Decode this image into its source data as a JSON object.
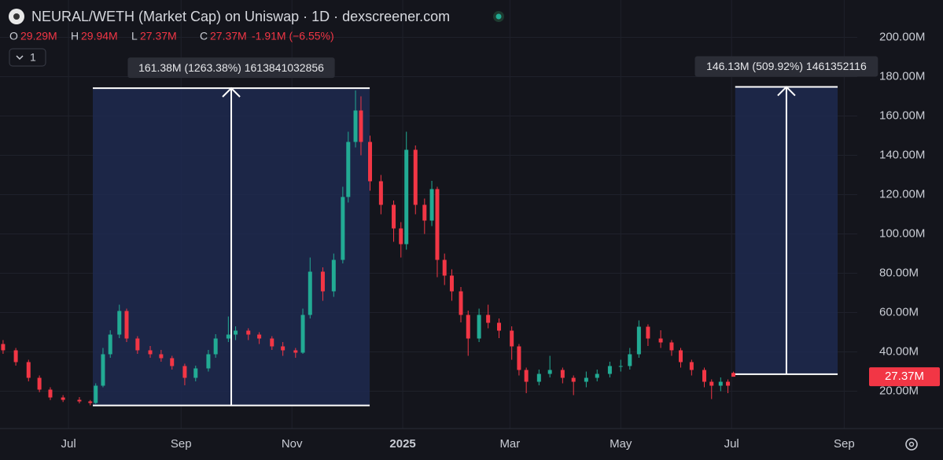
{
  "chart_data": {
    "type": "candlestick",
    "title": "NEURAL/WETH (Market Cap) on Uniswap · 1D · dexscreener.com",
    "ohlc_legend": [
      {
        "key": "O",
        "value": "29.29M"
      },
      {
        "key": "H",
        "value": "29.94M"
      },
      {
        "key": "L",
        "value": "27.37M"
      },
      {
        "key": "C",
        "value": "27.37M"
      }
    ],
    "change": "-1.91M (−6.55%)",
    "interval": "1",
    "colors": {
      "up": "#22ab94",
      "down": "#f23645"
    },
    "x": [
      -36,
      -29,
      -22,
      -16,
      -10,
      -3,
      6,
      12,
      15,
      19,
      23,
      28,
      32,
      38,
      45,
      51,
      57,
      64,
      70,
      77,
      81,
      88,
      92,
      99,
      105,
      112,
      118,
      125,
      129,
      133,
      140,
      146,
      151,
      154,
      158,
      161,
      166,
      172,
      179,
      183,
      186,
      191,
      196,
      200,
      203,
      207,
      211,
      216,
      220,
      226,
      231,
      237,
      244,
      248,
      252,
      259,
      265,
      272,
      278,
      285,
      291,
      298,
      304,
      309,
      314,
      319,
      326,
      332,
      337,
      343,
      350,
      354,
      359,
      363,
      366
    ],
    "open": [
      44,
      40.8,
      34.8,
      26.8,
      20.8,
      16.8,
      15.6,
      14.8,
      14,
      22.8,
      38.8,
      48.8,
      60.8,
      46.8,
      40.8,
      38.8,
      36.8,
      32.8,
      26.8,
      31.6,
      38.8,
      46.8,
      48.8,
      50.8,
      48.8,
      46.8,
      42.8,
      40.8,
      39.6,
      58.8,
      80.8,
      70.8,
      86.8,
      118.8,
      146.8,
      162.8,
      146.8,
      126.8,
      114.8,
      102.8,
      94.8,
      142.8,
      114.8,
      106.8,
      122.8,
      86.8,
      78.8,
      70.8,
      58.8,
      46.8,
      58.8,
      54.8,
      50.8,
      42.8,
      30.8,
      24.8,
      28.8,
      30.8,
      26.8,
      24.8,
      26.8,
      28.8,
      32.8,
      32.8,
      38.8,
      52.8,
      46.8,
      44.8,
      40.8,
      34.8,
      30.8,
      24.8,
      22.8,
      24.8,
      29.29
    ],
    "high": [
      46,
      42,
      36,
      28,
      22,
      18,
      17,
      15.5,
      24,
      42,
      51,
      64,
      62,
      48,
      43,
      41,
      38,
      34,
      33,
      41,
      49,
      58,
      53,
      52,
      50,
      48,
      45,
      42,
      62,
      88,
      83,
      90,
      124,
      152,
      173,
      170,
      150,
      130,
      117,
      106,
      152,
      145,
      118,
      127,
      124,
      90,
      82,
      73,
      61,
      62,
      64,
      57,
      53,
      44,
      32,
      31,
      38,
      32,
      28,
      30,
      31,
      35,
      36,
      42,
      56,
      54,
      51,
      46,
      42,
      36,
      32,
      26,
      27,
      26,
      29.94
    ],
    "low": [
      39,
      33,
      25,
      19.5,
      15.5,
      14.5,
      13.8,
      12.8,
      13.5,
      22,
      37,
      47,
      45,
      39,
      37,
      35,
      31,
      23,
      25,
      30,
      37,
      45,
      46,
      46,
      44,
      41,
      38,
      37,
      39,
      57,
      66,
      68,
      85,
      116,
      144,
      140,
      122,
      110,
      96,
      88,
      92,
      110,
      100,
      104,
      78,
      74,
      66,
      55,
      38,
      45,
      52,
      47,
      36,
      28,
      19,
      23,
      27,
      24,
      18,
      22,
      25,
      27,
      30,
      31,
      37,
      43,
      42,
      38,
      32,
      28,
      22,
      16,
      20,
      19,
      27.37
    ],
    "close": [
      40.8,
      34.8,
      26.8,
      20.8,
      16.8,
      15.6,
      14.8,
      14,
      22.8,
      38.8,
      48.8,
      60.8,
      46.8,
      40.8,
      38.8,
      36.8,
      32.8,
      26.8,
      31.6,
      38.8,
      46.8,
      48.8,
      50.8,
      48.8,
      46.8,
      42.8,
      40.8,
      39.6,
      58.8,
      80.8,
      70.8,
      86.8,
      118.8,
      146.8,
      162.8,
      146.8,
      126.8,
      114.8,
      102.8,
      94.8,
      142.8,
      114.8,
      106.8,
      122.8,
      86.8,
      78.8,
      70.8,
      58.8,
      46.8,
      58.8,
      54.8,
      50.8,
      42.8,
      30.8,
      24.8,
      28.8,
      30.8,
      26.8,
      24.8,
      26.8,
      28.8,
      32.8,
      32.8,
      38.8,
      52.8,
      46.8,
      44.8,
      40.8,
      34.8,
      30.8,
      24.8,
      22.8,
      24.8,
      22.8,
      27.37
    ],
    "xlim": [
      -37.7,
      434.2
    ],
    "xticks": [
      {
        "value": 0,
        "label": "Jul"
      },
      {
        "value": 62,
        "label": "Sep"
      },
      {
        "value": 123,
        "label": "Nov"
      },
      {
        "value": 184,
        "label": "2025",
        "bold": true
      },
      {
        "value": 243,
        "label": "Mar"
      },
      {
        "value": 304,
        "label": "May"
      },
      {
        "value": 365,
        "label": "Jul"
      },
      {
        "value": 427,
        "label": "Sep"
      }
    ],
    "ylim": [
      1,
      219
    ],
    "yticks": [
      {
        "value": 20,
        "label": "20.00M"
      },
      {
        "value": 40,
        "label": "40.00M"
      },
      {
        "value": 60,
        "label": "60.00M"
      },
      {
        "value": 80,
        "label": "80.00M"
      },
      {
        "value": 100,
        "label": "100.00M"
      },
      {
        "value": 120,
        "label": "120.00M"
      },
      {
        "value": 140,
        "label": "140.00M"
      },
      {
        "value": 160,
        "label": "160.00M"
      },
      {
        "value": 180,
        "label": "180.00M"
      },
      {
        "value": 200,
        "label": "200.00M"
      }
    ],
    "grid": true,
    "last_price": {
      "value": 27.37,
      "label": "27.37M"
    },
    "measures": [
      {
        "label": "161.38M (1263.38%) 1613841032856",
        "start": 13.4,
        "end": 165.8,
        "from": 12.77,
        "to": 174.15
      },
      {
        "label": "146.13M (509.92%) 1461352116",
        "start": 367,
        "end": 423.4,
        "from": 28.66,
        "to": 174.79
      }
    ]
  }
}
